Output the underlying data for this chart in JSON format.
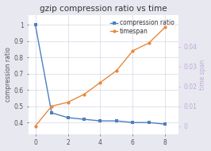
{
  "title": "gzip compression ratio vs time",
  "x": [
    0,
    1,
    2,
    3,
    4,
    5,
    6,
    7,
    8
  ],
  "compression_ratio": [
    1.0,
    0.46,
    0.43,
    0.42,
    0.41,
    0.41,
    0.4,
    0.4,
    0.39
  ],
  "timespan": [
    0.0,
    0.01,
    0.012,
    0.016,
    0.022,
    0.028,
    0.038,
    0.042,
    0.05
  ],
  "compression_color": "#4d7fbe",
  "timespan_color": "#e8883a",
  "left_ylabel": "compression ratio",
  "right_ylabel": "time span",
  "left_yticks": [
    0.4,
    0.5,
    0.6,
    0.7,
    0.8,
    0.9,
    1.0
  ],
  "left_yticklabels": [
    "0.4",
    "0.5",
    "0.6",
    "0.7",
    "0.8",
    "0.9",
    "1"
  ],
  "right_yticks": [
    0.0,
    0.01,
    0.02,
    0.03,
    0.04
  ],
  "right_yticklabels": [
    "0",
    "0.01",
    "0.02",
    "0.03",
    "0.04"
  ],
  "xticks": [
    0,
    2,
    4,
    6,
    8
  ],
  "xlim": [
    -0.4,
    8.8
  ],
  "left_ylim": [
    0.33,
    1.06
  ],
  "right_ylim": [
    -0.004,
    0.056
  ],
  "legend_compression": "compression ratio",
  "legend_timespan": "timespan",
  "background_color": "#e8e8f0",
  "plot_bg_color": "#ffffff",
  "grid_color": "#ccccdd",
  "title_fontsize": 7.5,
  "label_fontsize": 5.5,
  "tick_fontsize": 5.5,
  "legend_fontsize": 5.5,
  "right_label_color": "#c0aad8",
  "right_tick_color": "#c0aad8",
  "marker_size_blue": 3,
  "marker_size_orange": 3,
  "linewidth": 1.0
}
